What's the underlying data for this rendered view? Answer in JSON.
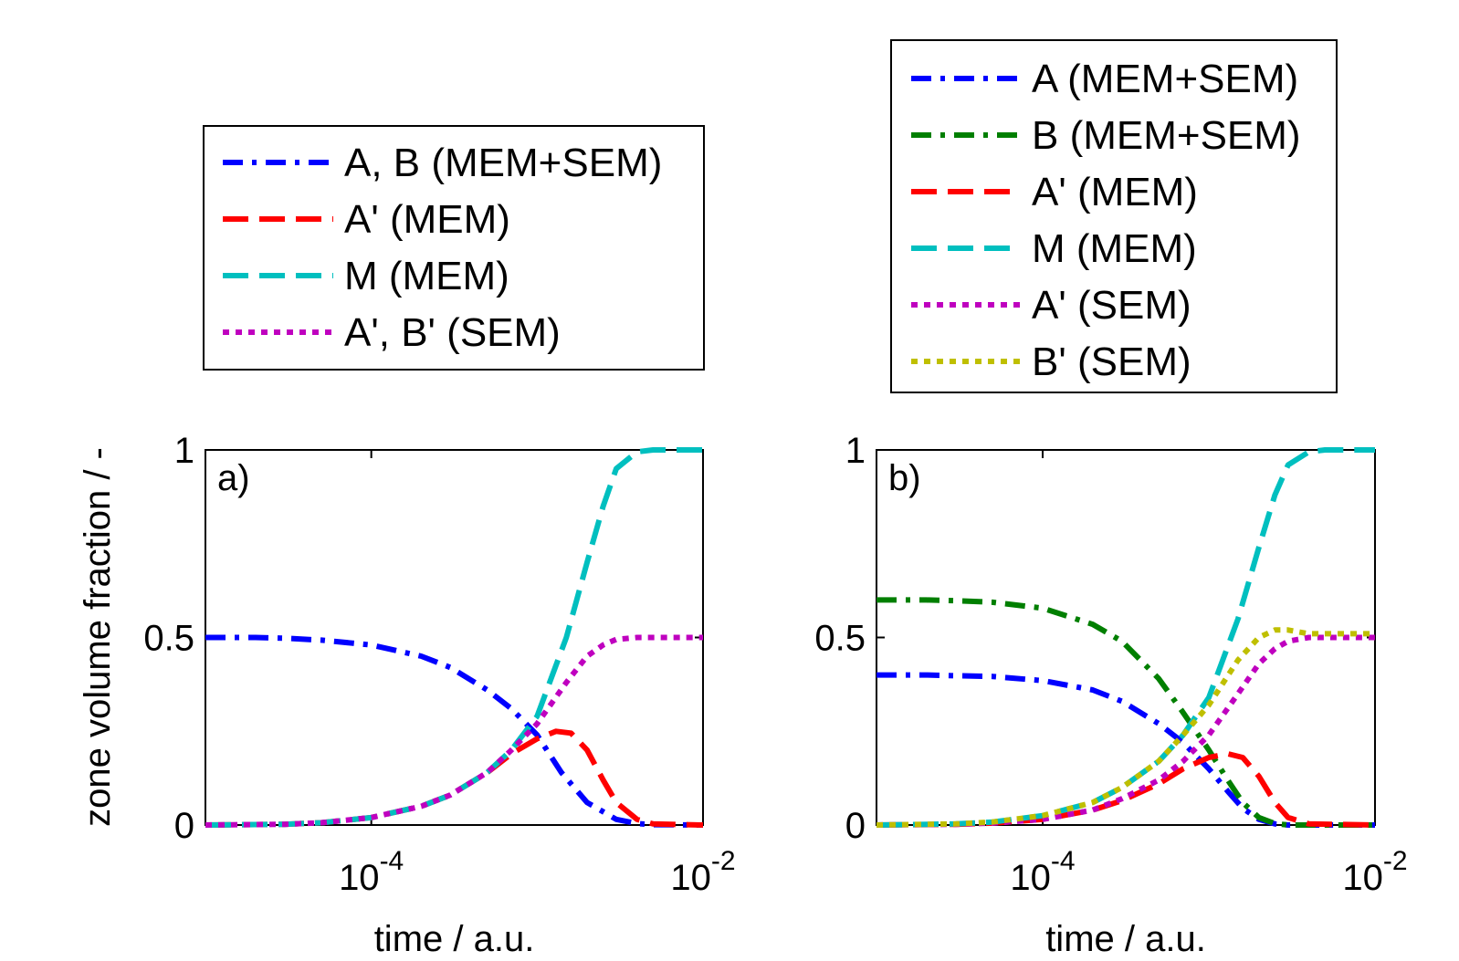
{
  "chart_data": [
    {
      "type": "line",
      "panel_label": "a)",
      "xlabel": "time / a.u.",
      "ylabel": "zone volume fraction / -",
      "xscale": "log",
      "xlim": [
        1e-05,
        0.01
      ],
      "ylim": [
        0,
        1
      ],
      "xticks": [
        {
          "value": 0.0001,
          "base": "10",
          "exp": "-4"
        },
        {
          "value": 0.01,
          "base": "10",
          "exp": "-2"
        }
      ],
      "yticks": [
        {
          "value": 0,
          "label": "0"
        },
        {
          "value": 0.5,
          "label": "0.5"
        },
        {
          "value": 1,
          "label": "1"
        }
      ],
      "legend_position": "above",
      "series": [
        {
          "name": "A, B (MEM+SEM)",
          "color": "#0000ff",
          "style": "dashdot",
          "x": [
            1e-05,
            2e-05,
            3e-05,
            5e-05,
            0.0001,
            0.0002,
            0.0003,
            0.0005,
            0.0007,
            0.001,
            0.0014,
            0.002,
            0.003,
            0.004,
            0.005,
            0.01
          ],
          "y": [
            0.5,
            0.5,
            0.498,
            0.493,
            0.48,
            0.45,
            0.42,
            0.36,
            0.31,
            0.24,
            0.14,
            0.06,
            0.015,
            0.004,
            0.001,
            0.0
          ]
        },
        {
          "name": "A' (MEM)",
          "color": "#ff0000",
          "style": "dashed",
          "x": [
            1e-05,
            3e-05,
            5e-05,
            0.0001,
            0.0002,
            0.0003,
            0.0005,
            0.0007,
            0.001,
            0.0013,
            0.0016,
            0.002,
            0.0025,
            0.003,
            0.004,
            0.005,
            0.01
          ],
          "y": [
            0.0,
            0.002,
            0.006,
            0.02,
            0.05,
            0.08,
            0.14,
            0.19,
            0.23,
            0.25,
            0.245,
            0.2,
            0.12,
            0.06,
            0.015,
            0.003,
            0.0
          ]
        },
        {
          "name": "M (MEM)",
          "color": "#00bfbf",
          "style": "dashed",
          "x": [
            1e-05,
            3e-05,
            5e-05,
            0.0001,
            0.0002,
            0.0003,
            0.0005,
            0.0007,
            0.001,
            0.0015,
            0.002,
            0.0025,
            0.003,
            0.004,
            0.005,
            0.01
          ],
          "y": [
            0.0,
            0.002,
            0.006,
            0.02,
            0.05,
            0.08,
            0.14,
            0.2,
            0.29,
            0.5,
            0.7,
            0.85,
            0.95,
            0.995,
            1.0,
            1.0
          ]
        },
        {
          "name": "A', B' (SEM)",
          "color": "#bf00bf",
          "style": "dotted",
          "x": [
            1e-05,
            3e-05,
            5e-05,
            0.0001,
            0.0002,
            0.0003,
            0.0005,
            0.0007,
            0.001,
            0.0015,
            0.002,
            0.0025,
            0.003,
            0.004,
            0.005,
            0.01
          ],
          "y": [
            0.0,
            0.002,
            0.006,
            0.02,
            0.05,
            0.08,
            0.14,
            0.2,
            0.27,
            0.38,
            0.45,
            0.48,
            0.495,
            0.5,
            0.5,
            0.5
          ]
        }
      ]
    },
    {
      "type": "line",
      "panel_label": "b)",
      "xlabel": "time / a.u.",
      "ylabel": "",
      "xscale": "log",
      "xlim": [
        1e-05,
        0.01
      ],
      "ylim": [
        0,
        1
      ],
      "xticks": [
        {
          "value": 0.0001,
          "base": "10",
          "exp": "-4"
        },
        {
          "value": 0.01,
          "base": "10",
          "exp": "-2"
        }
      ],
      "yticks": [
        {
          "value": 0,
          "label": "0"
        },
        {
          "value": 0.5,
          "label": "0.5"
        },
        {
          "value": 1,
          "label": "1"
        }
      ],
      "legend_position": "above",
      "series": [
        {
          "name": "A (MEM+SEM)",
          "color": "#0000ff",
          "style": "dashdot",
          "x": [
            1e-05,
            2e-05,
            3e-05,
            5e-05,
            0.0001,
            0.0002,
            0.0003,
            0.0005,
            0.0007,
            0.001,
            0.0013,
            0.0016,
            0.002,
            0.0025,
            0.003,
            0.01
          ],
          "y": [
            0.4,
            0.4,
            0.398,
            0.396,
            0.385,
            0.36,
            0.33,
            0.27,
            0.22,
            0.15,
            0.09,
            0.045,
            0.015,
            0.003,
            0.0,
            0.0
          ]
        },
        {
          "name": "B (MEM+SEM)",
          "color": "#007f00",
          "style": "dashdot",
          "x": [
            1e-05,
            2e-05,
            3e-05,
            5e-05,
            0.0001,
            0.0002,
            0.0003,
            0.0005,
            0.0007,
            0.001,
            0.0013,
            0.0016,
            0.002,
            0.0025,
            0.003,
            0.01
          ],
          "y": [
            0.6,
            0.6,
            0.598,
            0.594,
            0.578,
            0.535,
            0.49,
            0.39,
            0.3,
            0.2,
            0.12,
            0.06,
            0.02,
            0.004,
            0.0,
            0.0
          ]
        },
        {
          "name": "A' (MEM)",
          "color": "#ff0000",
          "style": "dashed",
          "x": [
            1e-05,
            3e-05,
            5e-05,
            0.0001,
            0.0002,
            0.0003,
            0.0005,
            0.0007,
            0.001,
            0.0013,
            0.0016,
            0.002,
            0.0025,
            0.003,
            0.004,
            0.01
          ],
          "y": [
            0.0,
            0.002,
            0.005,
            0.015,
            0.04,
            0.065,
            0.11,
            0.15,
            0.18,
            0.19,
            0.18,
            0.13,
            0.06,
            0.02,
            0.003,
            0.0
          ]
        },
        {
          "name": "M (MEM)",
          "color": "#00bfbf",
          "style": "dashed",
          "x": [
            1e-05,
            3e-05,
            5e-05,
            0.0001,
            0.0002,
            0.0003,
            0.0005,
            0.0007,
            0.001,
            0.0015,
            0.002,
            0.0025,
            0.003,
            0.004,
            0.005,
            0.01
          ],
          "y": [
            0.0,
            0.003,
            0.008,
            0.025,
            0.06,
            0.1,
            0.17,
            0.24,
            0.34,
            0.55,
            0.74,
            0.88,
            0.96,
            0.995,
            1.0,
            1.0
          ]
        },
        {
          "name": "A' (SEM)",
          "color": "#bf00bf",
          "style": "dotted",
          "x": [
            1e-05,
            3e-05,
            5e-05,
            0.0001,
            0.0002,
            0.0003,
            0.0005,
            0.0007,
            0.001,
            0.0015,
            0.002,
            0.0025,
            0.003,
            0.004,
            0.005,
            0.01
          ],
          "y": [
            0.0,
            0.002,
            0.005,
            0.015,
            0.04,
            0.07,
            0.12,
            0.17,
            0.24,
            0.35,
            0.43,
            0.47,
            0.49,
            0.5,
            0.5,
            0.5
          ]
        },
        {
          "name": "B' (SEM)",
          "color": "#bfbf00",
          "style": "dotted",
          "x": [
            1e-05,
            3e-05,
            5e-05,
            0.0001,
            0.0002,
            0.0003,
            0.0005,
            0.0007,
            0.001,
            0.0015,
            0.002,
            0.0025,
            0.003,
            0.004,
            0.005,
            0.01
          ],
          "y": [
            0.0,
            0.003,
            0.008,
            0.025,
            0.06,
            0.1,
            0.17,
            0.24,
            0.32,
            0.44,
            0.5,
            0.52,
            0.52,
            0.51,
            0.51,
            0.51
          ]
        }
      ]
    }
  ]
}
